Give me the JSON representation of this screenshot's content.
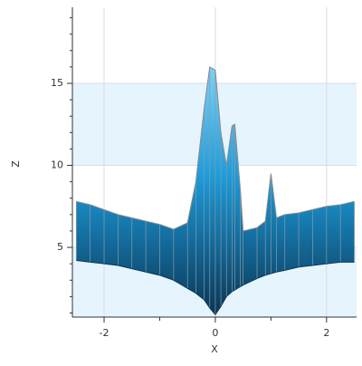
{
  "chart_data": {
    "type": "surface",
    "x_label": "X",
    "y_label": "Z",
    "x": [
      -2.5,
      -2.25,
      -2,
      -1.75,
      -1.5,
      -1.25,
      -1,
      -0.75,
      -0.5,
      -0.35,
      -0.2,
      -0.1,
      0,
      0.1,
      0.2,
      0.3,
      0.35,
      0.45,
      0.5,
      0.75,
      0.9,
      1.0,
      1.1,
      1.25,
      1.5,
      1.75,
      2,
      2.25,
      2.5
    ],
    "series": [
      {
        "color": "#2aa6e0",
        "values": [
          7.8,
          7.6,
          7.3,
          7.0,
          6.8,
          6.6,
          6.4,
          6.1,
          6.5,
          9,
          13.5,
          16,
          15.8,
          12,
          10,
          12.4,
          12.5,
          8.5,
          6,
          6.2,
          6.6,
          9.5,
          6.8,
          7.0,
          7.1,
          7.3,
          7.5,
          7.6,
          7.8
        ]
      },
      {
        "color": "#0b3a5e",
        "values": [
          4.2,
          4.1,
          4.0,
          3.9,
          3.7,
          3.5,
          3.3,
          3.0,
          2.5,
          2.2,
          1.8,
          1.3,
          0.9,
          1.4,
          2.0,
          2.3,
          2.4,
          2.6,
          2.7,
          3.1,
          3.3,
          3.4,
          3.5,
          3.6,
          3.8,
          3.9,
          4.0,
          4.1,
          4.1
        ]
      }
    ],
    "xlim": [
      -2.57,
      2.54
    ],
    "ylim": [
      0.75,
      19.64
    ],
    "xticks": [
      -2,
      0,
      2
    ],
    "yticks": [
      5,
      10,
      15
    ],
    "xticks_minor": [
      -1,
      1
    ],
    "yticks_minor": [
      1,
      2,
      3,
      4,
      6,
      7,
      8,
      9,
      11,
      12,
      13,
      14,
      16,
      17,
      18,
      19
    ],
    "grid": true,
    "band_color": "#e6f4fd",
    "mesh_color": "#8a9aa6"
  }
}
